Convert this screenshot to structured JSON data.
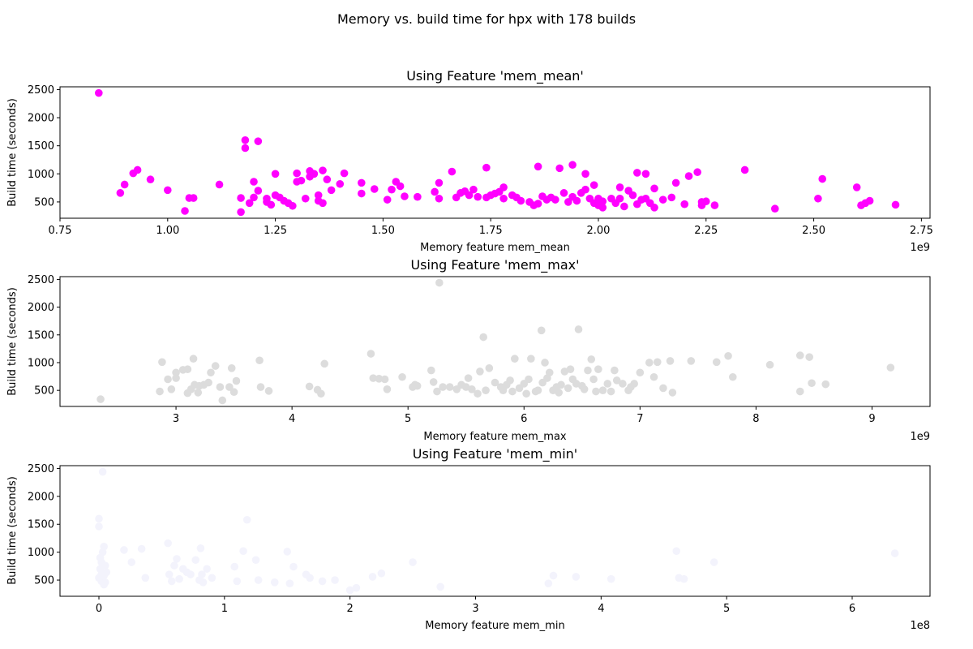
{
  "figure": {
    "suptitle": "Memory vs. build time for hpx with 178 builds"
  },
  "chart_data": [
    {
      "type": "scatter",
      "title": "Using Feature 'mem_mean'",
      "xlabel": "Memory feature mem_mean",
      "ylabel": "Build time (seconds)",
      "x_offset_label": "1e9",
      "xlim": [
        0.75,
        2.77
      ],
      "ylim": [
        210,
        2550
      ],
      "xticks": [
        0.75,
        1.0,
        1.25,
        1.5,
        1.75,
        2.0,
        2.25,
        2.5,
        2.75
      ],
      "xtick_labels": [
        "0.75",
        "1.00",
        "1.25",
        "1.50",
        "1.75",
        "2.00",
        "2.25",
        "2.50",
        "2.75"
      ],
      "yticks": [
        500,
        1000,
        1500,
        2000,
        2500
      ],
      "ytick_labels": [
        "500",
        "1000",
        "1500",
        "2000",
        "2500"
      ],
      "color": "#ff00ff",
      "points": [
        [
          0.84,
          2440
        ],
        [
          0.89,
          660
        ],
        [
          0.9,
          810
        ],
        [
          0.92,
          1010
        ],
        [
          0.93,
          1070
        ],
        [
          0.96,
          900
        ],
        [
          1.0,
          710
        ],
        [
          1.04,
          340
        ],
        [
          1.05,
          570
        ],
        [
          1.06,
          570
        ],
        [
          1.12,
          810
        ],
        [
          1.17,
          570
        ],
        [
          1.17,
          320
        ],
        [
          1.18,
          1600
        ],
        [
          1.18,
          1460
        ],
        [
          1.19,
          480
        ],
        [
          1.2,
          860
        ],
        [
          1.2,
          580
        ],
        [
          1.21,
          1580
        ],
        [
          1.21,
          700
        ],
        [
          1.23,
          560
        ],
        [
          1.23,
          500
        ],
        [
          1.24,
          450
        ],
        [
          1.25,
          1000
        ],
        [
          1.25,
          620
        ],
        [
          1.26,
          580
        ],
        [
          1.27,
          520
        ],
        [
          1.28,
          480
        ],
        [
          1.29,
          430
        ],
        [
          1.3,
          1010
        ],
        [
          1.3,
          860
        ],
        [
          1.31,
          880
        ],
        [
          1.32,
          560
        ],
        [
          1.33,
          950
        ],
        [
          1.33,
          1050
        ],
        [
          1.34,
          1000
        ],
        [
          1.35,
          620
        ],
        [
          1.35,
          520
        ],
        [
          1.36,
          1060
        ],
        [
          1.36,
          480
        ],
        [
          1.37,
          900
        ],
        [
          1.38,
          710
        ],
        [
          1.4,
          820
        ],
        [
          1.41,
          1010
        ],
        [
          1.45,
          840
        ],
        [
          1.45,
          650
        ],
        [
          1.48,
          730
        ],
        [
          1.51,
          540
        ],
        [
          1.52,
          720
        ],
        [
          1.53,
          860
        ],
        [
          1.54,
          780
        ],
        [
          1.55,
          600
        ],
        [
          1.58,
          590
        ],
        [
          1.62,
          680
        ],
        [
          1.63,
          840
        ],
        [
          1.63,
          560
        ],
        [
          1.66,
          1040
        ],
        [
          1.67,
          580
        ],
        [
          1.68,
          660
        ],
        [
          1.69,
          690
        ],
        [
          1.7,
          620
        ],
        [
          1.71,
          720
        ],
        [
          1.72,
          590
        ],
        [
          1.74,
          1110
        ],
        [
          1.74,
          580
        ],
        [
          1.75,
          620
        ],
        [
          1.76,
          650
        ],
        [
          1.77,
          680
        ],
        [
          1.78,
          760
        ],
        [
          1.78,
          560
        ],
        [
          1.8,
          620
        ],
        [
          1.81,
          580
        ],
        [
          1.82,
          520
        ],
        [
          1.84,
          500
        ],
        [
          1.85,
          440
        ],
        [
          1.86,
          1130
        ],
        [
          1.86,
          470
        ],
        [
          1.87,
          600
        ],
        [
          1.88,
          540
        ],
        [
          1.89,
          580
        ],
        [
          1.9,
          540
        ],
        [
          1.91,
          1100
        ],
        [
          1.92,
          660
        ],
        [
          1.93,
          500
        ],
        [
          1.94,
          1160
        ],
        [
          1.94,
          590
        ],
        [
          1.95,
          520
        ],
        [
          1.96,
          660
        ],
        [
          1.97,
          1000
        ],
        [
          1.97,
          720
        ],
        [
          1.98,
          560
        ],
        [
          1.99,
          800
        ],
        [
          1.99,
          480
        ],
        [
          2.0,
          560
        ],
        [
          2.0,
          440
        ],
        [
          2.01,
          510
        ],
        [
          2.01,
          400
        ],
        [
          2.03,
          560
        ],
        [
          2.04,
          480
        ],
        [
          2.05,
          760
        ],
        [
          2.05,
          560
        ],
        [
          2.06,
          420
        ],
        [
          2.07,
          700
        ],
        [
          2.08,
          620
        ],
        [
          2.09,
          1020
        ],
        [
          2.09,
          460
        ],
        [
          2.1,
          540
        ],
        [
          2.11,
          1000
        ],
        [
          2.11,
          560
        ],
        [
          2.12,
          480
        ],
        [
          2.13,
          740
        ],
        [
          2.13,
          400
        ],
        [
          2.15,
          540
        ],
        [
          2.17,
          580
        ],
        [
          2.18,
          840
        ],
        [
          2.2,
          460
        ],
        [
          2.21,
          960
        ],
        [
          2.23,
          1030
        ],
        [
          2.24,
          500
        ],
        [
          2.24,
          440
        ],
        [
          2.25,
          510
        ],
        [
          2.27,
          440
        ],
        [
          2.34,
          1070
        ],
        [
          2.41,
          380
        ],
        [
          2.51,
          560
        ],
        [
          2.52,
          910
        ],
        [
          2.6,
          760
        ],
        [
          2.61,
          440
        ],
        [
          2.62,
          480
        ],
        [
          2.63,
          520
        ],
        [
          2.69,
          450
        ]
      ]
    },
    {
      "type": "scatter",
      "title": "Using Feature 'mem_max'",
      "xlabel": "Memory feature mem_max",
      "ylabel": "Build time (seconds)",
      "x_offset_label": "1e9",
      "xlim": [
        2.0,
        9.5
      ],
      "ylim": [
        210,
        2550
      ],
      "xticks": [
        3,
        4,
        5,
        6,
        7,
        8,
        9
      ],
      "xtick_labels": [
        "3",
        "4",
        "5",
        "6",
        "7",
        "8",
        "9"
      ],
      "yticks": [
        500,
        1000,
        1500,
        2000,
        2500
      ],
      "ytick_labels": [
        "500",
        "1000",
        "1500",
        "2000",
        "2500"
      ],
      "color": "#dcdcdc",
      "points": [
        [
          2.35,
          340
        ],
        [
          2.86,
          480
        ],
        [
          2.88,
          1010
        ],
        [
          2.93,
          700
        ],
        [
          2.96,
          520
        ],
        [
          3.0,
          820
        ],
        [
          3.0,
          720
        ],
        [
          3.06,
          870
        ],
        [
          3.1,
          880
        ],
        [
          3.1,
          450
        ],
        [
          3.13,
          520
        ],
        [
          3.15,
          1070
        ],
        [
          3.16,
          600
        ],
        [
          3.19,
          460
        ],
        [
          3.2,
          580
        ],
        [
          3.24,
          600
        ],
        [
          3.28,
          640
        ],
        [
          3.3,
          820
        ],
        [
          3.34,
          940
        ],
        [
          3.38,
          560
        ],
        [
          3.4,
          320
        ],
        [
          3.46,
          560
        ],
        [
          3.48,
          900
        ],
        [
          3.5,
          470
        ],
        [
          3.52,
          670
        ],
        [
          3.72,
          1040
        ],
        [
          3.73,
          560
        ],
        [
          3.8,
          490
        ],
        [
          4.15,
          570
        ],
        [
          4.22,
          510
        ],
        [
          4.25,
          440
        ],
        [
          4.28,
          980
        ],
        [
          4.68,
          1160
        ],
        [
          4.7,
          720
        ],
        [
          4.75,
          710
        ],
        [
          4.8,
          700
        ],
        [
          4.82,
          520
        ],
        [
          4.95,
          740
        ],
        [
          5.04,
          560
        ],
        [
          5.06,
          600
        ],
        [
          5.08,
          580
        ],
        [
          5.2,
          860
        ],
        [
          5.22,
          650
        ],
        [
          5.25,
          480
        ],
        [
          5.27,
          2440
        ],
        [
          5.3,
          560
        ],
        [
          5.36,
          560
        ],
        [
          5.42,
          520
        ],
        [
          5.46,
          600
        ],
        [
          5.5,
          560
        ],
        [
          5.52,
          720
        ],
        [
          5.55,
          520
        ],
        [
          5.6,
          440
        ],
        [
          5.62,
          840
        ],
        [
          5.65,
          1460
        ],
        [
          5.67,
          500
        ],
        [
          5.7,
          900
        ],
        [
          5.75,
          640
        ],
        [
          5.8,
          560
        ],
        [
          5.82,
          500
        ],
        [
          5.85,
          600
        ],
        [
          5.88,
          680
        ],
        [
          5.9,
          480
        ],
        [
          5.92,
          1070
        ],
        [
          5.96,
          540
        ],
        [
          6.0,
          620
        ],
        [
          6.02,
          440
        ],
        [
          6.04,
          700
        ],
        [
          6.06,
          1070
        ],
        [
          6.1,
          480
        ],
        [
          6.12,
          500
        ],
        [
          6.15,
          1580
        ],
        [
          6.16,
          640
        ],
        [
          6.18,
          1000
        ],
        [
          6.2,
          720
        ],
        [
          6.22,
          820
        ],
        [
          6.25,
          500
        ],
        [
          6.28,
          560
        ],
        [
          6.3,
          460
        ],
        [
          6.32,
          600
        ],
        [
          6.35,
          840
        ],
        [
          6.38,
          540
        ],
        [
          6.4,
          880
        ],
        [
          6.42,
          700
        ],
        [
          6.45,
          620
        ],
        [
          6.47,
          1600
        ],
        [
          6.5,
          580
        ],
        [
          6.52,
          520
        ],
        [
          6.55,
          860
        ],
        [
          6.58,
          1060
        ],
        [
          6.6,
          700
        ],
        [
          6.62,
          480
        ],
        [
          6.64,
          880
        ],
        [
          6.68,
          500
        ],
        [
          6.72,
          620
        ],
        [
          6.75,
          480
        ],
        [
          6.78,
          860
        ],
        [
          6.8,
          680
        ],
        [
          6.85,
          620
        ],
        [
          6.9,
          500
        ],
        [
          6.92,
          560
        ],
        [
          6.95,
          620
        ],
        [
          7.0,
          820
        ],
        [
          7.08,
          1000
        ],
        [
          7.12,
          740
        ],
        [
          7.15,
          1010
        ],
        [
          7.2,
          540
        ],
        [
          7.26,
          1030
        ],
        [
          7.28,
          460
        ],
        [
          7.44,
          1030
        ],
        [
          7.66,
          1010
        ],
        [
          7.76,
          1120
        ],
        [
          7.8,
          740
        ],
        [
          8.12,
          960
        ],
        [
          8.38,
          480
        ],
        [
          8.38,
          1130
        ],
        [
          8.46,
          1100
        ],
        [
          8.48,
          630
        ],
        [
          8.6,
          610
        ],
        [
          9.16,
          910
        ]
      ]
    },
    {
      "type": "scatter",
      "title": "Using Feature 'mem_min'",
      "xlabel": "Memory feature mem_min",
      "ylabel": "Build time (seconds)",
      "x_offset_label": "1e8",
      "xlim": [
        -0.31,
        6.62
      ],
      "ylim": [
        210,
        2550
      ],
      "xticks": [
        0,
        1,
        2,
        3,
        4,
        5,
        6
      ],
      "xtick_labels": [
        "0",
        "1",
        "2",
        "3",
        "4",
        "5",
        "6"
      ],
      "yticks": [
        500,
        1000,
        1500,
        2000,
        2500
      ],
      "ytick_labels": [
        "500",
        "1000",
        "1500",
        "2000",
        "2500"
      ],
      "color": "#f3f3fc",
      "points": [
        [
          0.0,
          1600
        ],
        [
          0.0,
          1460
        ],
        [
          0.01,
          900
        ],
        [
          0.02,
          820
        ],
        [
          0.01,
          700
        ],
        [
          0.02,
          600
        ],
        [
          0.0,
          540
        ],
        [
          0.02,
          480
        ],
        [
          0.04,
          420
        ],
        [
          0.03,
          1000
        ],
        [
          0.04,
          1100
        ],
        [
          0.05,
          760
        ],
        [
          0.06,
          640
        ],
        [
          0.03,
          2440
        ],
        [
          0.04,
          580
        ],
        [
          0.02,
          500
        ],
        [
          0.05,
          460
        ],
        [
          0.2,
          1040
        ],
        [
          0.26,
          820
        ],
        [
          0.34,
          1060
        ],
        [
          0.37,
          540
        ],
        [
          0.55,
          1160
        ],
        [
          0.56,
          600
        ],
        [
          0.58,
          480
        ],
        [
          0.6,
          760
        ],
        [
          0.62,
          880
        ],
        [
          0.64,
          520
        ],
        [
          0.67,
          700
        ],
        [
          0.7,
          640
        ],
        [
          0.73,
          600
        ],
        [
          0.77,
          860
        ],
        [
          0.8,
          500
        ],
        [
          0.81,
          1070
        ],
        [
          0.82,
          600
        ],
        [
          0.83,
          460
        ],
        [
          0.86,
          700
        ],
        [
          0.9,
          540
        ],
        [
          1.08,
          740
        ],
        [
          1.1,
          480
        ],
        [
          1.15,
          1020
        ],
        [
          1.18,
          1580
        ],
        [
          1.25,
          860
        ],
        [
          1.27,
          500
        ],
        [
          1.4,
          460
        ],
        [
          1.5,
          1010
        ],
        [
          1.52,
          440
        ],
        [
          1.55,
          740
        ],
        [
          1.65,
          600
        ],
        [
          1.68,
          540
        ],
        [
          1.78,
          480
        ],
        [
          1.88,
          500
        ],
        [
          2.0,
          320
        ],
        [
          2.05,
          360
        ],
        [
          2.18,
          560
        ],
        [
          2.25,
          620
        ],
        [
          2.5,
          820
        ],
        [
          2.72,
          380
        ],
        [
          3.58,
          440
        ],
        [
          3.62,
          580
        ],
        [
          3.8,
          560
        ],
        [
          4.08,
          520
        ],
        [
          4.6,
          1020
        ],
        [
          4.62,
          540
        ],
        [
          4.66,
          520
        ],
        [
          4.9,
          820
        ],
        [
          6.34,
          980
        ]
      ]
    }
  ]
}
